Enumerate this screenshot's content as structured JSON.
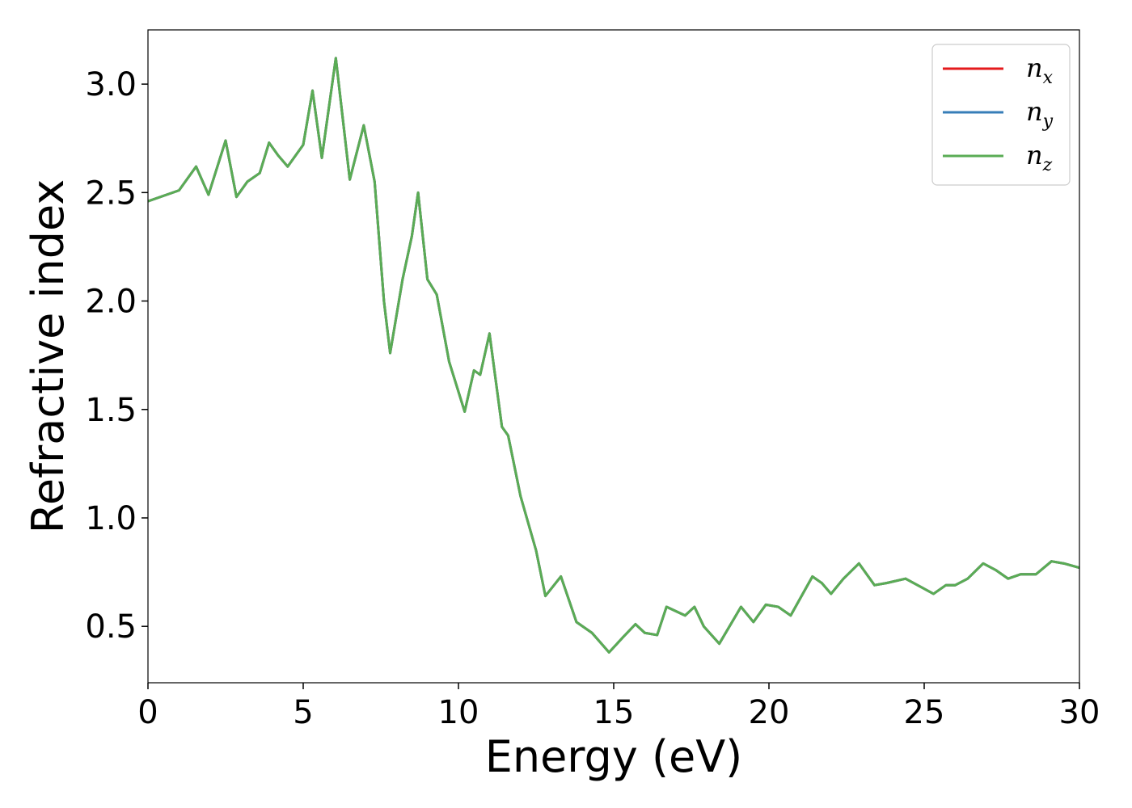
{
  "chart_data": {
    "type": "line",
    "x_label": "Energy (eV)",
    "y_label": "Refractive index",
    "x": [
      0,
      1.0,
      1.55,
      1.95,
      2.5,
      2.85,
      3.2,
      3.6,
      3.9,
      4.2,
      4.5,
      5.0,
      5.3,
      5.6,
      6.05,
      6.5,
      6.95,
      7.3,
      7.6,
      7.8,
      8.2,
      8.5,
      8.7,
      9.0,
      9.3,
      9.7,
      10.2,
      10.5,
      10.7,
      11.0,
      11.4,
      11.6,
      12.0,
      12.5,
      12.8,
      13.3,
      13.8,
      14.3,
      14.85,
      15.3,
      15.7,
      16.0,
      16.4,
      16.7,
      17.3,
      17.6,
      17.9,
      18.4,
      19.1,
      19.5,
      19.9,
      20.3,
      20.7,
      21.4,
      21.7,
      22.0,
      22.4,
      22.9,
      23.4,
      23.8,
      24.4,
      25.3,
      25.7,
      26.0,
      26.4,
      26.9,
      27.3,
      27.7,
      28.1,
      28.6,
      29.1,
      29.5,
      30
    ],
    "series": [
      {
        "name": "nx",
        "color": "#e41a1c",
        "values": [
          2.46,
          2.51,
          2.62,
          2.49,
          2.74,
          2.48,
          2.55,
          2.59,
          2.73,
          2.67,
          2.62,
          2.72,
          2.97,
          2.66,
          3.12,
          2.56,
          2.81,
          2.55,
          2.0,
          1.76,
          2.1,
          2.3,
          2.5,
          2.1,
          2.03,
          1.72,
          1.49,
          1.68,
          1.66,
          1.85,
          1.42,
          1.38,
          1.1,
          0.85,
          0.64,
          0.73,
          0.52,
          0.47,
          0.38,
          0.45,
          0.51,
          0.47,
          0.46,
          0.59,
          0.55,
          0.59,
          0.5,
          0.42,
          0.59,
          0.52,
          0.6,
          0.59,
          0.55,
          0.73,
          0.7,
          0.65,
          0.72,
          0.79,
          0.69,
          0.7,
          0.72,
          0.65,
          0.69,
          0.69,
          0.72,
          0.79,
          0.76,
          0.72,
          0.74,
          0.74,
          0.8,
          0.79,
          0.77
        ]
      },
      {
        "name": "ny",
        "color": "#377eb8",
        "values": [
          2.46,
          2.51,
          2.62,
          2.49,
          2.74,
          2.48,
          2.55,
          2.59,
          2.73,
          2.67,
          2.62,
          2.72,
          2.97,
          2.66,
          3.12,
          2.56,
          2.81,
          2.55,
          2.0,
          1.76,
          2.1,
          2.3,
          2.5,
          2.1,
          2.03,
          1.72,
          1.49,
          1.68,
          1.66,
          1.85,
          1.42,
          1.38,
          1.1,
          0.85,
          0.64,
          0.73,
          0.52,
          0.47,
          0.38,
          0.45,
          0.51,
          0.47,
          0.46,
          0.59,
          0.55,
          0.59,
          0.5,
          0.42,
          0.59,
          0.52,
          0.6,
          0.59,
          0.55,
          0.73,
          0.7,
          0.65,
          0.72,
          0.79,
          0.69,
          0.7,
          0.72,
          0.65,
          0.69,
          0.69,
          0.72,
          0.79,
          0.76,
          0.72,
          0.74,
          0.74,
          0.8,
          0.79,
          0.77
        ]
      },
      {
        "name": "nz",
        "color": "#5aac55",
        "values": [
          2.46,
          2.51,
          2.62,
          2.49,
          2.74,
          2.48,
          2.55,
          2.59,
          2.73,
          2.67,
          2.62,
          2.72,
          2.97,
          2.66,
          3.12,
          2.56,
          2.81,
          2.55,
          2.0,
          1.76,
          2.1,
          2.3,
          2.5,
          2.1,
          2.03,
          1.72,
          1.49,
          1.68,
          1.66,
          1.85,
          1.42,
          1.38,
          1.1,
          0.85,
          0.64,
          0.73,
          0.52,
          0.47,
          0.38,
          0.45,
          0.51,
          0.47,
          0.46,
          0.59,
          0.55,
          0.59,
          0.5,
          0.42,
          0.59,
          0.52,
          0.6,
          0.59,
          0.55,
          0.73,
          0.7,
          0.65,
          0.72,
          0.79,
          0.69,
          0.7,
          0.72,
          0.65,
          0.69,
          0.69,
          0.72,
          0.79,
          0.76,
          0.72,
          0.74,
          0.74,
          0.8,
          0.79,
          0.77
        ]
      }
    ],
    "xlim": [
      0,
      30
    ],
    "xticks": [
      0,
      5,
      10,
      15,
      20,
      25,
      30
    ],
    "ylim": [
      0.24,
      3.25
    ],
    "yticks": [
      {
        "value": 0.5,
        "label": "0.5"
      },
      {
        "value": 1.0,
        "label": "1.0"
      },
      {
        "value": 1.5,
        "label": "1.5"
      },
      {
        "value": 2.0,
        "label": "2.0"
      },
      {
        "value": 2.5,
        "label": "2.5"
      },
      {
        "value": 3.0,
        "label": "3.0"
      }
    ],
    "legend": "upper right",
    "grid": false
  }
}
